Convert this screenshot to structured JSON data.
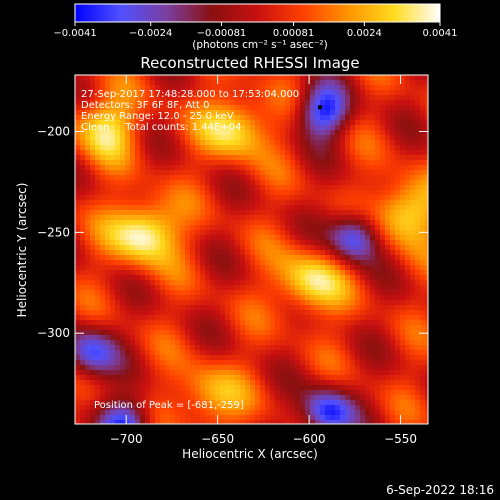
{
  "chart_data": {
    "type": "heatmap",
    "title": "Reconstructed RHESSI Image",
    "xlabel": "Heliocentric X (arcsec)",
    "ylabel": "Heliocentric Y (arcsec)",
    "xlim": [
      -728,
      -535
    ],
    "ylim": [
      -345,
      -172
    ],
    "x_ticks": [
      -700,
      -650,
      -600,
      -550
    ],
    "x_tick_labels": [
      "−700",
      "−650",
      "−600",
      "−550"
    ],
    "y_ticks": [
      -200,
      -250,
      -300
    ],
    "y_tick_labels": [
      "−200",
      "−250",
      "−300"
    ],
    "colorbar": {
      "min": -0.0041,
      "max": 0.0041,
      "ticks": [
        -0.0041,
        -0.0024,
        -0.00081,
        0.00081,
        0.0024,
        0.0041
      ],
      "tick_labels": [
        "−0.0041",
        "−0.0024",
        "−0.00081",
        "0.00081",
        "0.0024",
        "0.0041"
      ],
      "unit_label": "(photons cm⁻² s⁻¹ asec⁻²)",
      "colors": [
        "#0000ff",
        "#5050ff",
        "#7a3fa0",
        "#8a1010",
        "#c81010",
        "#ff4000",
        "#ff9500",
        "#ffdb20",
        "#ffffff"
      ]
    },
    "annotations": [
      "27-Sep-2017 17:48:28.000 to 17:53:04.000",
      "Detectors: 3F 6F 8F, Att 0",
      "Energy Range: 12.0 - 25.0 keV",
      "Clean     Total counts: 1.44E+04"
    ],
    "peak_label": "Position of Peak = [-681,-259]",
    "peak": [
      -681,
      -259
    ],
    "marker": [
      -594,
      -188
    ],
    "bright_sources": [
      {
        "x": -690,
        "y": -250,
        "level": 1.0
      },
      {
        "x": -640,
        "y": -198,
        "level": 0.8
      },
      {
        "x": -548,
        "y": -240,
        "level": 0.85
      },
      {
        "x": -600,
        "y": -275,
        "level": 0.8
      },
      {
        "x": -655,
        "y": -332,
        "level": 0.6
      },
      {
        "x": -712,
        "y": -198,
        "level": 0.7
      }
    ],
    "dark_sources": [
      {
        "x": -592,
        "y": -190,
        "level": 0.9
      },
      {
        "x": -575,
        "y": -252,
        "level": 0.9
      },
      {
        "x": -590,
        "y": -340,
        "level": 0.95
      },
      {
        "x": -720,
        "y": -310,
        "level": 0.8
      },
      {
        "x": -700,
        "y": -345,
        "level": 0.8
      }
    ]
  },
  "footer": {
    "date": "6-Sep-2022 18:16"
  }
}
